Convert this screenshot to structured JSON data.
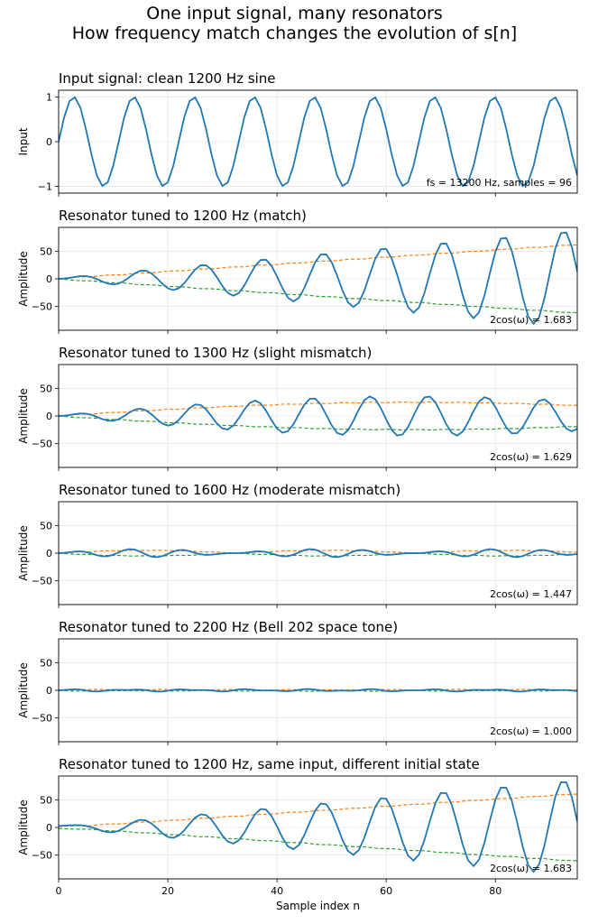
{
  "figure": {
    "title_line1": "One input signal, many resonators",
    "title_line2": "How frequency match changes the evolution of s[n]",
    "xlabel": "Sample index n"
  },
  "colors": {
    "main": "#1f77b4",
    "upper": "#ff7f0e",
    "lower": "#2ca02c",
    "grid": "#e6e6e6"
  },
  "chart_data": [
    {
      "type": "line",
      "title": "Input signal: clean 1200 Hz sine",
      "ylabel": "Input",
      "annotation": "fs = 13200 Hz, samples = 96",
      "xlim": [
        0,
        95
      ],
      "ylim": [
        -1.15,
        1.15
      ],
      "yticks": [
        -1,
        0,
        1
      ],
      "signal": {
        "kind": "input",
        "fs": 13200,
        "freq": 1200,
        "samples": 96
      },
      "series": [
        {
          "values": "sin(2*pi*1200*n/13200), n = 0..95"
        }
      ]
    },
    {
      "type": "line",
      "title": "Resonator tuned to 1200 Hz (match)",
      "ylabel": "Amplitude",
      "annotation": "2cos(ω) = 1.683",
      "xlim": [
        0,
        95
      ],
      "ylim": [
        -93,
        93
      ],
      "yticks": [
        -50,
        0,
        50
      ],
      "signal": {
        "kind": "resonator",
        "tuned": 1200,
        "coef": 1.683,
        "fs": 13200,
        "freq": 1200,
        "samples": 96
      },
      "series": [
        {
          "values": "s[n] = x[n] + 2cos(ω)·s[n-1] − s[n-2]"
        },
        {
          "values": "upper envelope"
        },
        {
          "values": "lower envelope"
        }
      ]
    },
    {
      "type": "line",
      "title": "Resonator tuned to 1300 Hz (slight mismatch)",
      "ylabel": "Amplitude",
      "annotation": "2cos(ω) = 1.629",
      "xlim": [
        0,
        95
      ],
      "ylim": [
        -93,
        93
      ],
      "yticks": [
        -50,
        0,
        50
      ],
      "signal": {
        "kind": "resonator",
        "tuned": 1300,
        "coef": 1.629,
        "fs": 13200,
        "freq": 1200,
        "samples": 96
      },
      "series": [
        {
          "values": "s[n]"
        },
        {
          "values": "upper envelope"
        },
        {
          "values": "lower envelope"
        }
      ]
    },
    {
      "type": "line",
      "title": "Resonator tuned to 1600 Hz (moderate mismatch)",
      "ylabel": "Amplitude",
      "annotation": "2cos(ω) = 1.447",
      "xlim": [
        0,
        95
      ],
      "ylim": [
        -93,
        93
      ],
      "yticks": [
        -50,
        0,
        50
      ],
      "signal": {
        "kind": "resonator",
        "tuned": 1600,
        "coef": 1.447,
        "fs": 13200,
        "freq": 1200,
        "samples": 96
      },
      "series": [
        {
          "values": "s[n]"
        },
        {
          "values": "upper envelope"
        },
        {
          "values": "lower envelope"
        }
      ]
    },
    {
      "type": "line",
      "title": "Resonator tuned to 2200 Hz (Bell 202 space tone)",
      "ylabel": "Amplitude",
      "annotation": "2cos(ω) = 1.000",
      "xlim": [
        0,
        95
      ],
      "ylim": [
        -93,
        93
      ],
      "yticks": [
        -50,
        0,
        50
      ],
      "signal": {
        "kind": "resonator",
        "tuned": 2200,
        "coef": 1.0,
        "fs": 13200,
        "freq": 1200,
        "samples": 96
      },
      "series": [
        {
          "values": "s[n]"
        },
        {
          "values": "upper envelope"
        },
        {
          "values": "lower envelope"
        }
      ]
    },
    {
      "type": "line",
      "title": "Resonator tuned to 1200 Hz, same input, different initial state",
      "ylabel": "Amplitude",
      "annotation": "2cos(ω) = 1.683",
      "xlim": [
        0,
        95
      ],
      "ylim": [
        -93,
        93
      ],
      "yticks": [
        -50,
        0,
        50
      ],
      "xticks": [
        0,
        20,
        40,
        60,
        80
      ],
      "signal": {
        "kind": "resonator",
        "tuned": 1200,
        "coef": 1.683,
        "fs": 13200,
        "freq": 1200,
        "samples": 96,
        "init": [
          1.5,
          0.0
        ]
      },
      "series": [
        {
          "values": "s[n]"
        },
        {
          "values": "upper envelope"
        },
        {
          "values": "lower envelope"
        }
      ]
    }
  ]
}
